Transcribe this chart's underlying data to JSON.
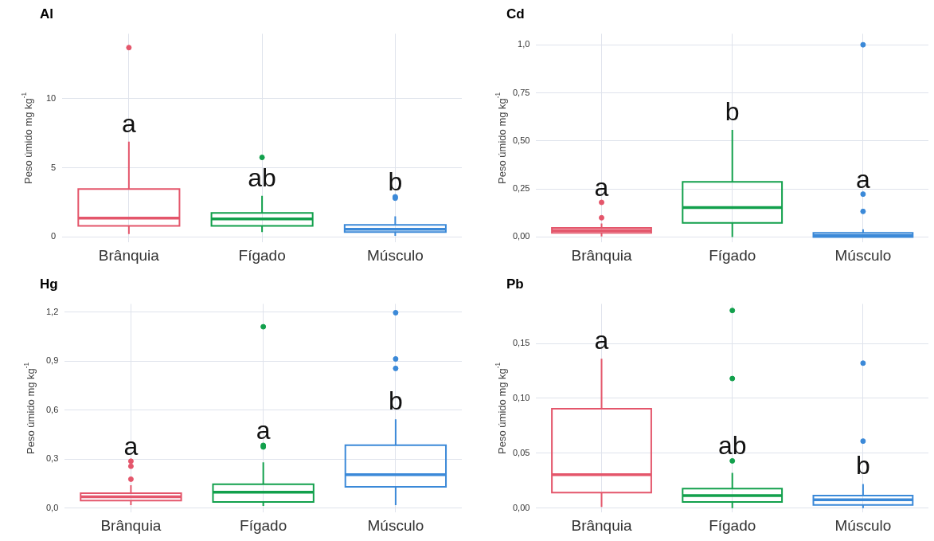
{
  "chart_data": [
    {
      "type": "box",
      "title": "Al",
      "ylabel": "Peso úmido mg kg$^{-1}$",
      "categories": [
        "Brânquia",
        "Fígado",
        "Músculo"
      ],
      "colors": [
        "#e4566b",
        "#12a04c",
        "#3b89d8"
      ],
      "grid": true,
      "ylim": [
        -0.4,
        14.7
      ],
      "yticks": [
        0,
        5,
        10
      ],
      "boxes": [
        {
          "low": 0.2,
          "q1": 0.8,
          "median": 1.35,
          "q3": 3.46,
          "high": 6.9,
          "outliers": [
            13.7
          ]
        },
        {
          "low": 0.35,
          "q1": 0.8,
          "median": 1.3,
          "q3": 1.73,
          "high": 2.97,
          "outliers": [
            5.75
          ]
        },
        {
          "low": 0.08,
          "q1": 0.35,
          "median": 0.55,
          "q3": 0.87,
          "high": 1.48,
          "outliers": [
            2.9,
            2.8
          ]
        }
      ],
      "annotations": [
        "a",
        "ab",
        "b"
      ]
    },
    {
      "type": "box",
      "title": "Cd",
      "ylabel": "Peso úmido mg kg$^{-1}$",
      "categories": [
        "Brânquia",
        "Fígado",
        "Músculo"
      ],
      "colors": [
        "#e4566b",
        "#12a04c",
        "#3b89d8"
      ],
      "grid": true,
      "ylim": [
        -0.028,
        1.057
      ],
      "yticks": [
        {
          "value": 0,
          "label": "0,00"
        },
        {
          "value": 0.25,
          "label": "0,25"
        },
        {
          "value": 0.5,
          "label": "0,50"
        },
        {
          "value": 0.75,
          "label": "0,75"
        },
        {
          "value": 1,
          "label": "1,0"
        }
      ],
      "boxes": [
        {
          "low": 0.003,
          "q1": 0.022,
          "median": 0.034,
          "q3": 0.047,
          "high": 0.07,
          "outliers": [
            0.18,
            0.1
          ]
        },
        {
          "low": 0,
          "q1": 0.073,
          "median": 0.153,
          "q3": 0.287,
          "high": 0.557
        },
        {
          "low": 0,
          "q1": 0,
          "median": 0.008,
          "q3": 0.022,
          "high": 0.04,
          "outliers": [
            1.0,
            0.223,
            0.133
          ]
        }
      ],
      "annotations": [
        "a",
        "b",
        "a"
      ]
    },
    {
      "type": "box",
      "title": "Hg",
      "ylabel": "Peso úmido mg kg$^{-1}$",
      "categories": [
        "Brânquia",
        "Fígado",
        "Músculo"
      ],
      "colors": [
        "#e4566b",
        "#12a04c",
        "#3b89d8"
      ],
      "grid": true,
      "ylim": [
        -0.027,
        1.25
      ],
      "yticks": [
        {
          "value": 0,
          "label": "0,0"
        },
        {
          "value": 0.3,
          "label": "0,3"
        },
        {
          "value": 0.6,
          "label": "0,6"
        },
        {
          "value": 0.9,
          "label": "0,9"
        },
        {
          "value": 1.2,
          "label": "1,2"
        }
      ],
      "boxes": [
        {
          "low": 0.018,
          "q1": 0.046,
          "median": 0.069,
          "q3": 0.091,
          "high": 0.14,
          "outliers": [
            0.287,
            0.256,
            0.177
          ]
        },
        {
          "low": 0.013,
          "q1": 0.037,
          "median": 0.097,
          "q3": 0.146,
          "high": 0.28,
          "outliers": [
            1.11,
            0.384,
            0.374
          ]
        },
        {
          "low": 0.018,
          "q1": 0.13,
          "median": 0.205,
          "q3": 0.385,
          "high": 0.544,
          "outliers": [
            1.196,
            0.913,
            0.855
          ]
        }
      ],
      "annotations": [
        "a",
        "a",
        "b"
      ]
    },
    {
      "type": "box",
      "title": "Pb",
      "ylabel": "Peso úmido mg kg$^{-1}$",
      "categories": [
        "Brânquia",
        "Fígado",
        "Músculo"
      ],
      "colors": [
        "#e4566b",
        "#12a04c",
        "#3b89d8"
      ],
      "grid": true,
      "ylim": [
        -0.004,
        0.186
      ],
      "yticks": [
        {
          "value": 0,
          "label": "0,00"
        },
        {
          "value": 0.05,
          "label": "0,05"
        },
        {
          "value": 0.1,
          "label": "0,10"
        },
        {
          "value": 0.15,
          "label": "0,15"
        }
      ],
      "boxes": [
        {
          "low": 0.001,
          "q1": 0.0141,
          "median": 0.0304,
          "q3": 0.0905,
          "high": 0.136
        },
        {
          "low": 0,
          "q1": 0.0056,
          "median": 0.0113,
          "q3": 0.0178,
          "high": 0.032,
          "outliers": [
            0.18,
            0.118,
            0.043
          ]
        },
        {
          "low": 0,
          "q1": 0.0028,
          "median": 0.0076,
          "q3": 0.0113,
          "high": 0.022,
          "outliers": [
            0.132,
            0.061
          ]
        }
      ],
      "annotations": [
        "a",
        "ab",
        "b"
      ]
    }
  ]
}
